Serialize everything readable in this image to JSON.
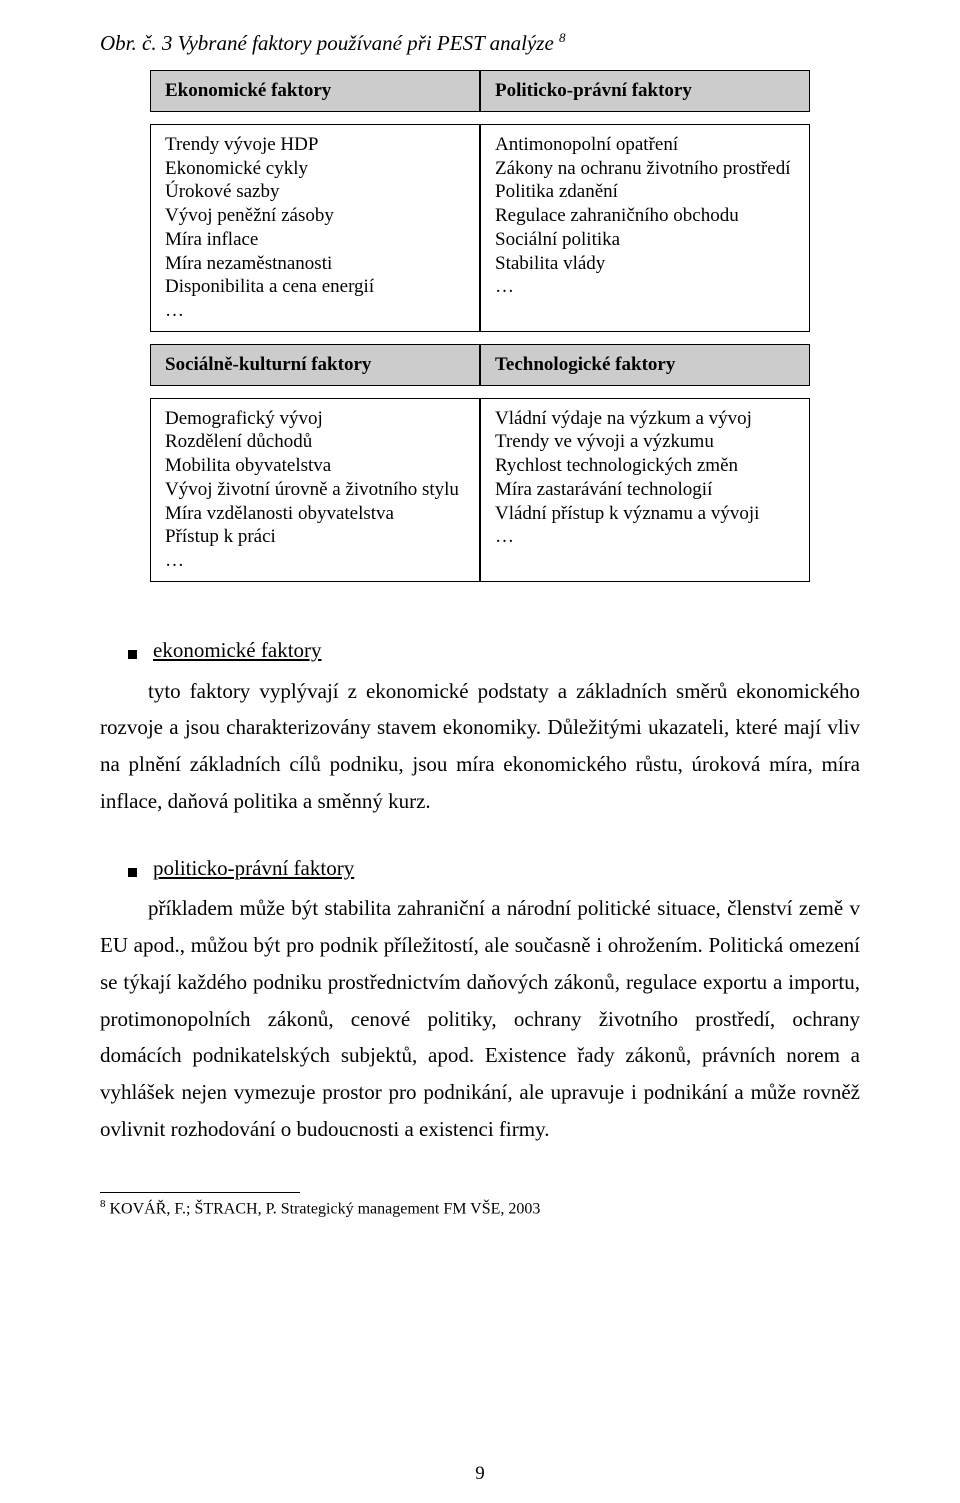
{
  "caption": {
    "prefix": "Obr. č. 3 Vybrané faktory používané při PEST analýze ",
    "sup": "8"
  },
  "table": {
    "r1": {
      "left": "Ekonomické faktory",
      "right": "Politicko-právní faktory"
    },
    "r2": {
      "left": "Trendy vývoje HDP\nEkonomické cykly\nÚrokové sazby\nVývoj peněžní zásoby\nMíra inflace\nMíra nezaměstnanosti\nDisponibilita a cena energií\n…",
      "right": "Antimonopolní opatření\nZákony na ochranu životního prostředí\nPolitika zdanění\nRegulace zahraničního obchodu\nSociální politika\nStabilita vlády\n…"
    },
    "r3": {
      "left": "Sociálně-kulturní faktory",
      "right": "Technologické faktory"
    },
    "r4": {
      "left": "Demografický vývoj\nRozdělení důchodů\nMobilita obyvatelstva\nVývoj životní úrovně a životního stylu\nMíra vzdělanosti obyvatelstva\nPřístup k práci\n…",
      "right": "Vládní výdaje na výzkum a vývoj\nTrendy ve vývoji a výzkumu\nRychlost technologických změn\nMíra zastarávání technologií\nVládní přístup k významu a vývoji\n…"
    }
  },
  "sections": {
    "s1": {
      "label": "ekonomické faktory",
      "text": "tyto faktory vyplývají z ekonomické podstaty a základních směrů ekonomického rozvoje a jsou charakterizovány stavem ekonomiky. Důležitými ukazateli, které mají vliv na plnění základních cílů podniku, jsou míra ekonomického růstu, úroková míra, míra inflace, daňová politika a směnný kurz."
    },
    "s2": {
      "label": "politicko-právní faktory",
      "text": "příkladem může být stabilita zahraniční a národní politické situace, členství země v EU apod., můžou být pro podnik příležitostí, ale současně i ohrožením. Politická omezení se týkají každého podniku prostřednictvím daňových zákonů, regulace exportu a importu, protimonopolních zákonů, cenové politiky, ochrany životního prostředí, ochrany domácích podnikatelských subjektů, apod. Existence řady zákonů, právních norem a vyhlášek nejen vymezuje prostor pro podnikání, ale upravuje i podnikání a může rovněž ovlivnit rozhodování o budoucnosti a existenci firmy."
    }
  },
  "footnote": {
    "sup": "8",
    "text": " KOVÁŘ, F.; ŠTRACH, P. Strategický management FM VŠE, 2003"
  },
  "pagenum": "9"
}
